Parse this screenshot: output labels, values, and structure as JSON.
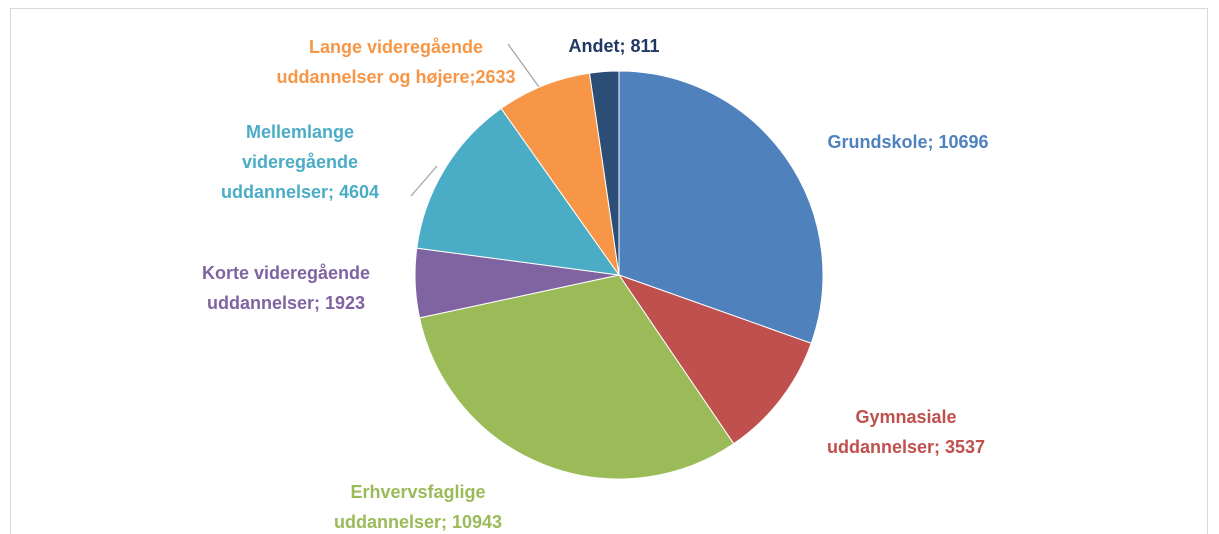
{
  "chart_data": {
    "type": "pie",
    "categories": [
      "Grundskole",
      "Gymnasiale uddannelser",
      "Erhvervsfaglige uddannelser",
      "Korte videregående uddannelser",
      "Mellemlange videregående uddannelser",
      "Lange videregående uddannelser og højere",
      "Andet"
    ],
    "values": [
      10696,
      3537,
      10943,
      1923,
      4604,
      2633,
      811
    ],
    "value_labels": [
      "Grundskole; 10696",
      "Gymnasiale uddannelser; 3537",
      "Erhvervsfaglige uddannelser; 10943",
      "Korte videregående uddannelser; 1923",
      "Mellemlange videregående uddannelser; 4604",
      "Lange videregående uddannelser og højere;2633",
      "Andet; 811"
    ],
    "colors": [
      "#4f81bd",
      "#c0504d",
      "#9bbb59",
      "#8064a2",
      "#4bacc6",
      "#f79646",
      "#2c4d75"
    ],
    "label_colors": [
      "#4f81bd",
      "#c0504d",
      "#9bbb59",
      "#8064a2",
      "#4bacc6",
      "#f79646",
      "#1f3864"
    ]
  }
}
